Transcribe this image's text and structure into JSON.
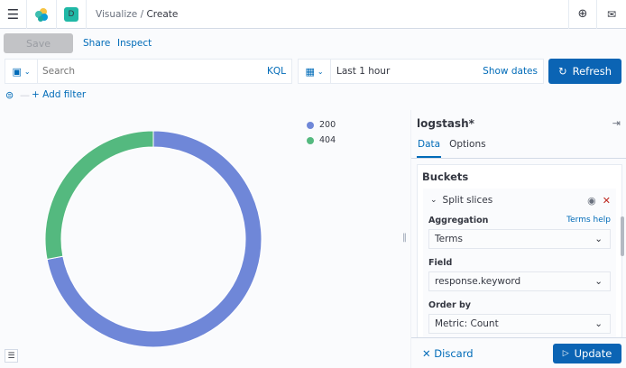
{
  "header": {
    "breadcrumbs": [
      "Visualize",
      "Create"
    ],
    "space_initial": "D"
  },
  "toolbar": {
    "save": "Save",
    "share": "Share",
    "inspect": "Inspect"
  },
  "query": {
    "placeholder": "Search",
    "language": "KQL",
    "time": "Last 1 hour",
    "show_dates": "Show dates",
    "refresh": "Refresh",
    "add_filter": "+ Add filter"
  },
  "chart_data": {
    "type": "pie",
    "donut": true,
    "categories": [
      "200",
      "404"
    ],
    "values": [
      72,
      28
    ],
    "colors": [
      "#6f87d8",
      "#54b97f"
    ],
    "legend_position": "top-right"
  },
  "panel": {
    "index": "logstash*",
    "tabs": [
      "Data",
      "Options"
    ],
    "buckets": "Buckets",
    "split": "Split slices",
    "aggregation_label": "Aggregation",
    "terms_help": "Terms help",
    "aggregation": "Terms",
    "field_label": "Field",
    "field": "response.keyword",
    "order_label": "Order by",
    "order": "Metric: Count",
    "discard": "Discard",
    "update": "Update"
  }
}
